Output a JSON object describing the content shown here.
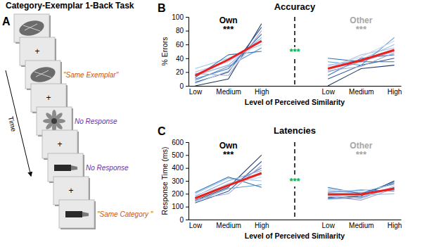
{
  "diagram": {
    "panel": "A",
    "title": "Category-Exemplar 1-Back Task",
    "time_label": "Time",
    "fixation": "+",
    "responses": [
      {
        "text": "\"Same Exemplar\"",
        "color": "#c55a11"
      },
      {
        "text": "No Response",
        "color": "#7030a0"
      },
      {
        "text": "No Response",
        "color": "#7030a0"
      },
      {
        "text": "\"Same Category \"",
        "color": "#c55a11"
      }
    ]
  },
  "chart_data": [
    {
      "type": "line",
      "title": "Accuracy",
      "x_label": "Level of Perceived Similarity",
      "y_label": "% Errors",
      "categories": [
        "Low",
        "Medium",
        "High",
        null,
        "Low",
        "Medium",
        "High"
      ],
      "ylim": [
        0,
        100
      ],
      "yticks": [
        0,
        20,
        40,
        60,
        80,
        100
      ],
      "grid": false,
      "annotations": [
        {
          "text": "B",
          "color": "#000000"
        },
        {
          "text": "Own",
          "color": "#000000"
        },
        {
          "text": "***",
          "color": "#000000"
        },
        {
          "text": "Other",
          "color": "#a6a6a6"
        },
        {
          "text": "***",
          "color": "#a6a6a6"
        },
        {
          "text": "***",
          "color": "#00b050"
        }
      ],
      "series": [
        {
          "color": "#1f3864",
          "line_style": "solid",
          "values": [
            0,
            10,
            90,
            null,
            0,
            25,
            30
          ]
        },
        {
          "color": "#2f5597",
          "line_style": "solid",
          "values": [
            5,
            20,
            85,
            null,
            10,
            30,
            40
          ]
        },
        {
          "color": "#4472c4",
          "line_style": "solid",
          "values": [
            10,
            25,
            75,
            null,
            15,
            40,
            45
          ]
        },
        {
          "color": "#8faadc",
          "line_style": "solid",
          "values": [
            15,
            30,
            70,
            null,
            20,
            35,
            50
          ]
        },
        {
          "color": "#b4c7e7",
          "line_style": "solid",
          "values": [
            20,
            35,
            65,
            null,
            25,
            45,
            55
          ]
        },
        {
          "color": "#9dc3e6",
          "line_style": "solid",
          "values": [
            25,
            40,
            60,
            null,
            30,
            38,
            60
          ]
        },
        {
          "color": "#5b9bd5",
          "line_style": "solid",
          "values": [
            8,
            28,
            55,
            null,
            35,
            30,
            70
          ]
        },
        {
          "color": "#2e75b6",
          "line_style": "solid",
          "values": [
            12,
            45,
            50,
            null,
            40,
            35,
            35
          ]
        },
        {
          "color": "#a6a6c8",
          "line_style": "solid",
          "values": [
            18,
            15,
            80,
            null,
            22,
            28,
            48
          ]
        },
        {
          "color": "#c9d6ea",
          "line_style": "solid",
          "values": [
            3,
            22,
            68,
            null,
            28,
            42,
            65
          ]
        },
        {
          "color": "#e8211f",
          "line_style": "thick",
          "values": [
            15,
            38,
            65,
            null,
            25,
            37,
            52
          ]
        }
      ]
    },
    {
      "type": "line",
      "title": "Latencies",
      "x_label": "Level of Perceived Similarity",
      "y_label": "Response Time (ms)",
      "categories": [
        "Low",
        "Medium",
        "High",
        null,
        "Low",
        "Medium",
        "High"
      ],
      "ylim": [
        0,
        600
      ],
      "yticks": [
        0,
        100,
        200,
        300,
        400,
        500,
        600
      ],
      "grid": false,
      "annotations": [
        {
          "text": "C",
          "color": "#000000"
        },
        {
          "text": "Own",
          "color": "#000000"
        },
        {
          "text": "***",
          "color": "#000000"
        },
        {
          "text": "Other",
          "color": "#a6a6a6"
        },
        {
          "text": "***",
          "color": "#a6a6a6"
        },
        {
          "text": "***",
          "color": "#00b050"
        }
      ],
      "series": [
        {
          "color": "#1f3864",
          "line_style": "solid",
          "values": [
            150,
            250,
            500,
            null,
            170,
            180,
            300
          ]
        },
        {
          "color": "#2f5597",
          "line_style": "solid",
          "values": [
            130,
            220,
            450,
            null,
            200,
            200,
            280
          ]
        },
        {
          "color": "#4472c4",
          "line_style": "solid",
          "values": [
            170,
            260,
            400,
            null,
            160,
            170,
            250
          ]
        },
        {
          "color": "#8faadc",
          "line_style": "solid",
          "values": [
            180,
            300,
            380,
            null,
            220,
            210,
            230
          ]
        },
        {
          "color": "#b4c7e7",
          "line_style": "solid",
          "values": [
            160,
            280,
            350,
            null,
            190,
            160,
            260
          ]
        },
        {
          "color": "#9dc3e6",
          "line_style": "solid",
          "values": [
            200,
            320,
            300,
            null,
            240,
            190,
            200
          ]
        },
        {
          "color": "#5b9bd5",
          "line_style": "solid",
          "values": [
            140,
            240,
            270,
            null,
            210,
            230,
            220
          ]
        },
        {
          "color": "#2e75b6",
          "line_style": "solid",
          "values": [
            210,
            330,
            250,
            null,
            250,
            200,
            290
          ]
        },
        {
          "color": "#a6a6c8",
          "line_style": "solid",
          "values": [
            155,
            200,
            420,
            null,
            180,
            150,
            240
          ]
        },
        {
          "color": "#c9d6ea",
          "line_style": "solid",
          "values": [
            190,
            270,
            330,
            null,
            230,
            220,
            270
          ]
        },
        {
          "color": "#e8211f",
          "line_style": "thick",
          "values": [
            165,
            265,
            360,
            null,
            195,
            195,
            240
          ]
        }
      ]
    }
  ]
}
